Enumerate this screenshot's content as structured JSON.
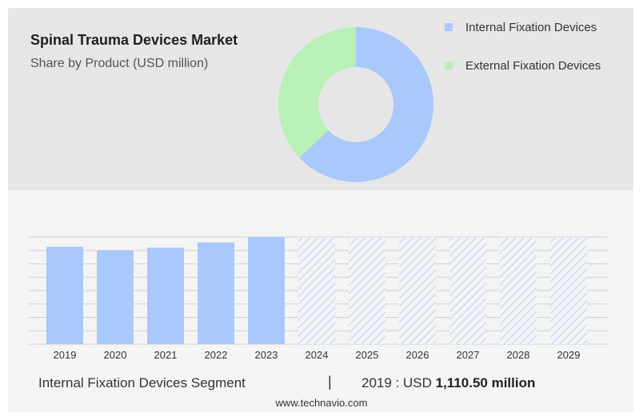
{
  "header": {
    "title": "Spinal Trauma Devices Market",
    "subtitle": "Share by Product (USD million)"
  },
  "footer": {
    "segment_label": "Internal Fixation Devices Segment",
    "divider": "|",
    "year_label": "2019 : USD",
    "value_label": "1,110.50 million",
    "credit": "www.technavio.com"
  },
  "colors": {
    "internal": "#a9c8fc",
    "external": "#b8f0b6",
    "hatch": "#a9c8fc",
    "grid": "#d0d0d0"
  },
  "chart_data": [
    {
      "type": "pie",
      "variant": "donut",
      "labels": [
        "Internal Fixation Devices",
        "External Fixation Devices"
      ],
      "values": [
        63,
        37
      ],
      "legend": "right"
    },
    {
      "type": "bar",
      "categories": [
        "2019",
        "2020",
        "2021",
        "2022",
        "2023",
        "2024",
        "2025",
        "2026",
        "2027",
        "2028",
        "2029"
      ],
      "values": [
        1110.5,
        1070,
        1100,
        1160,
        1220,
        1220,
        1220,
        1220,
        1220,
        1220,
        1220
      ],
      "forecast_from": "2024",
      "ylim": [
        0,
        1220
      ],
      "grid": true
    }
  ]
}
